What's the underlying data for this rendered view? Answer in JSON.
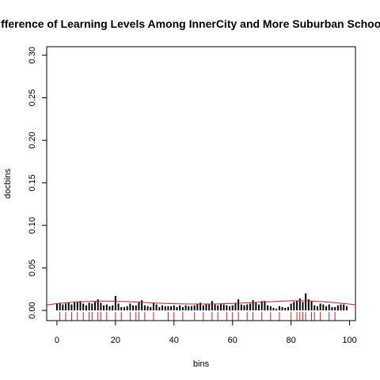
{
  "chart_data": {
    "type": "bar",
    "title": "Difference of Learning Levels Among InnerCity and More Suburban Schools",
    "xlabel": "bins",
    "ylabel": "docbins",
    "xlim": [
      -3.5,
      102
    ],
    "ylim": [
      -0.012,
      0.31
    ],
    "x_ticks": [
      0,
      20,
      40,
      60,
      80,
      100
    ],
    "y_ticks": [
      0.0,
      0.05,
      0.1,
      0.15,
      0.2,
      0.25,
      0.3
    ],
    "x_tick_labels": [
      "0",
      "20",
      "40",
      "60",
      "80",
      "100"
    ],
    "y_tick_labels": [
      "0.00",
      "0.05",
      "0.10",
      "0.15",
      "0.20",
      "0.25",
      "0.30"
    ],
    "grid": false,
    "legend": "none",
    "bar_color": "#000000",
    "curve_color": "#e31a1c",
    "rug_color": "#e31a1c",
    "bars": {
      "x": [
        0,
        1,
        2,
        3,
        4,
        5,
        6,
        7,
        8,
        9,
        10,
        11,
        12,
        13,
        14,
        15,
        16,
        17,
        18,
        19,
        20,
        21,
        22,
        23,
        24,
        25,
        26,
        27,
        28,
        29,
        30,
        31,
        32,
        33,
        34,
        35,
        36,
        37,
        38,
        39,
        40,
        41,
        42,
        43,
        44,
        45,
        46,
        47,
        48,
        49,
        50,
        51,
        52,
        53,
        54,
        55,
        56,
        57,
        58,
        59,
        60,
        61,
        62,
        63,
        64,
        65,
        66,
        67,
        68,
        69,
        70,
        71,
        72,
        73,
        74,
        75,
        76,
        77,
        78,
        79,
        80,
        81,
        82,
        83,
        84,
        85,
        86,
        87,
        88,
        89,
        90,
        91,
        92,
        93,
        94,
        95,
        96,
        97,
        98,
        99
      ],
      "values": [
        0.008,
        0.009,
        0.007,
        0.008,
        0.009,
        0.007,
        0.01,
        0.01,
        0.011,
        0.008,
        0.006,
        0.009,
        0.008,
        0.01,
        0.013,
        0.009,
        0.006,
        0.007,
        0.005,
        0.006,
        0.017,
        0.008,
        0.004,
        0.004,
        0.005,
        0.008,
        0.006,
        0.006,
        0.01,
        0.012,
        0.006,
        0.005,
        0.004,
        0.009,
        0.007,
        0.004,
        0.006,
        0.005,
        0.005,
        0.005,
        0.006,
        0.004,
        0.006,
        0.004,
        0.006,
        0.005,
        0.005,
        0.006,
        0.008,
        0.009,
        0.006,
        0.008,
        0.007,
        0.011,
        0.007,
        0.006,
        0.008,
        0.007,
        0.006,
        0.005,
        0.006,
        0.009,
        0.013,
        0.007,
        0.006,
        0.007,
        0.008,
        0.012,
        0.009,
        0.007,
        0.011,
        0.011,
        0.006,
        0.005,
        0.003,
        0.002,
        0.005,
        0.004,
        0.003,
        0.004,
        0.008,
        0.01,
        0.011,
        0.014,
        0.01,
        0.02,
        0.013,
        0.011,
        0.006,
        0.005,
        0.008,
        0.007,
        0.005,
        0.007,
        0.004,
        0.004,
        0.006,
        0.007,
        0.007,
        0.005
      ]
    },
    "density_curve": {
      "x": [
        -3.5,
        0,
        5,
        10,
        15,
        20,
        25,
        30,
        35,
        40,
        45,
        50,
        55,
        60,
        65,
        70,
        75,
        80,
        85,
        90,
        95,
        100,
        102
      ],
      "y": [
        0.0065,
        0.008,
        0.0095,
        0.0105,
        0.011,
        0.0108,
        0.0102,
        0.0093,
        0.0085,
        0.0079,
        0.0076,
        0.0075,
        0.0077,
        0.0082,
        0.0089,
        0.0097,
        0.0106,
        0.0114,
        0.0113,
        0.0104,
        0.009,
        0.0074,
        0.0066
      ]
    },
    "rug_x": [
      1,
      3,
      5,
      7,
      9,
      11,
      12,
      14,
      15,
      17,
      20,
      22,
      25,
      27,
      28,
      30,
      33,
      38,
      40,
      43,
      47,
      50,
      53,
      55,
      58,
      60,
      62,
      65,
      67,
      70,
      73,
      76,
      80,
      82,
      83,
      84,
      85,
      87,
      88,
      90,
      93,
      95
    ]
  }
}
